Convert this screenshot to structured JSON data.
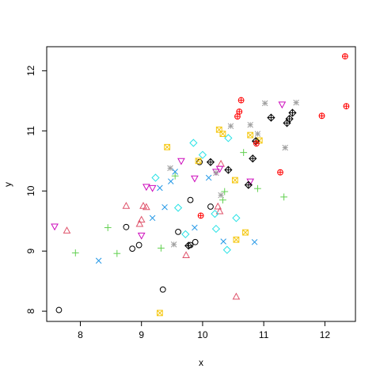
{
  "chart_data": {
    "type": "scatter",
    "title": "",
    "xlabel": "x",
    "ylabel": "y",
    "xlim": [
      7.45,
      12.5
    ],
    "ylim": [
      7.83,
      12.4
    ],
    "x_ticks": [
      "8",
      "9",
      "10",
      "11",
      "12"
    ],
    "y_ticks": [
      "8",
      "9",
      "10",
      "11",
      "12"
    ],
    "grid": false,
    "legend": "none",
    "series": [
      {
        "marker": "circle",
        "color": "#000000",
        "points": [
          [
            7.65,
            8.02
          ],
          [
            8.75,
            9.4
          ],
          [
            8.85,
            9.04
          ],
          [
            8.96,
            9.1
          ],
          [
            9.35,
            8.36
          ],
          [
            9.6,
            9.32
          ],
          [
            9.8,
            9.85
          ],
          [
            9.88,
            9.15
          ],
          [
            9.95,
            10.48
          ],
          [
            10.13,
            9.74
          ],
          [
            9.8,
            9.1
          ]
        ]
      },
      {
        "marker": "triangle-up",
        "color": "#DF536B",
        "points": [
          [
            7.78,
            9.34
          ],
          [
            8.75,
            9.75
          ],
          [
            8.97,
            9.45
          ],
          [
            9.0,
            9.52
          ],
          [
            9.03,
            9.75
          ],
          [
            9.08,
            9.73
          ],
          [
            9.73,
            8.93
          ],
          [
            10.25,
            9.74
          ],
          [
            10.28,
            9.66
          ],
          [
            10.3,
            10.45
          ],
          [
            10.55,
            8.24
          ]
        ]
      },
      {
        "marker": "plus",
        "color": "#61D04F",
        "points": [
          [
            7.92,
            8.97
          ],
          [
            8.45,
            9.39
          ],
          [
            8.6,
            8.96
          ],
          [
            9.32,
            9.05
          ],
          [
            9.55,
            10.25
          ],
          [
            10.33,
            9.85
          ],
          [
            10.36,
            9.99
          ],
          [
            10.67,
            10.64
          ],
          [
            10.9,
            10.04
          ],
          [
            11.33,
            9.9
          ]
        ]
      },
      {
        "marker": "cross",
        "color": "#2297E6",
        "points": [
          [
            8.3,
            8.84
          ],
          [
            9.18,
            9.55
          ],
          [
            9.38,
            9.73
          ],
          [
            9.48,
            10.16
          ],
          [
            9.55,
            10.32
          ],
          [
            9.87,
            9.39
          ],
          [
            10.1,
            10.22
          ],
          [
            10.34,
            9.16
          ],
          [
            10.85,
            9.15
          ],
          [
            9.3,
            10.05
          ]
        ]
      },
      {
        "marker": "diamond",
        "color": "#28E2E5",
        "points": [
          [
            9.23,
            10.22
          ],
          [
            9.6,
            9.72
          ],
          [
            9.72,
            9.28
          ],
          [
            9.85,
            10.8
          ],
          [
            10.0,
            10.6
          ],
          [
            10.2,
            9.62
          ],
          [
            10.22,
            9.37
          ],
          [
            10.4,
            9.02
          ],
          [
            10.42,
            10.88
          ],
          [
            10.55,
            9.55
          ]
        ]
      },
      {
        "marker": "triangle-down",
        "color": "#CD0BBC",
        "points": [
          [
            7.58,
            9.41
          ],
          [
            9.0,
            9.26
          ],
          [
            9.08,
            10.07
          ],
          [
            9.18,
            10.05
          ],
          [
            9.65,
            10.5
          ],
          [
            9.87,
            10.21
          ],
          [
            10.22,
            10.32
          ],
          [
            10.28,
            10.37
          ],
          [
            10.78,
            10.16
          ],
          [
            11.3,
            11.44
          ]
        ]
      },
      {
        "marker": "x-square",
        "color": "#F5C710",
        "points": [
          [
            9.3,
            7.97
          ],
          [
            9.42,
            10.73
          ],
          [
            9.93,
            10.5
          ],
          [
            10.27,
            11.02
          ],
          [
            10.33,
            10.95
          ],
          [
            10.53,
            10.18
          ],
          [
            10.55,
            9.19
          ],
          [
            10.7,
            9.31
          ],
          [
            10.78,
            10.93
          ],
          [
            10.93,
            10.84
          ]
        ]
      },
      {
        "marker": "star",
        "color": "#9E9E9E",
        "points": [
          [
            9.47,
            10.38
          ],
          [
            9.53,
            9.11
          ],
          [
            10.22,
            10.3
          ],
          [
            10.3,
            9.93
          ],
          [
            10.46,
            11.08
          ],
          [
            10.78,
            11.1
          ],
          [
            10.9,
            10.95
          ],
          [
            11.02,
            11.46
          ],
          [
            11.35,
            10.72
          ],
          [
            11.53,
            11.47
          ]
        ]
      },
      {
        "marker": "diamond-plus",
        "color": "#000000",
        "points": [
          [
            9.77,
            9.09
          ],
          [
            10.13,
            10.48
          ],
          [
            10.42,
            10.35
          ],
          [
            10.75,
            10.1
          ],
          [
            10.82,
            10.54
          ],
          [
            10.87,
            10.83
          ],
          [
            11.12,
            11.22
          ],
          [
            11.38,
            11.13
          ],
          [
            11.42,
            11.2
          ],
          [
            11.47,
            11.3
          ]
        ]
      },
      {
        "marker": "circle-plus",
        "color": "#FF0000",
        "points": [
          [
            9.97,
            9.59
          ],
          [
            10.57,
            11.24
          ],
          [
            10.6,
            11.32
          ],
          [
            10.63,
            11.51
          ],
          [
            10.88,
            10.79
          ],
          [
            11.27,
            10.31
          ],
          [
            11.95,
            11.25
          ],
          [
            12.33,
            12.24
          ],
          [
            12.35,
            11.41
          ]
        ]
      }
    ]
  }
}
